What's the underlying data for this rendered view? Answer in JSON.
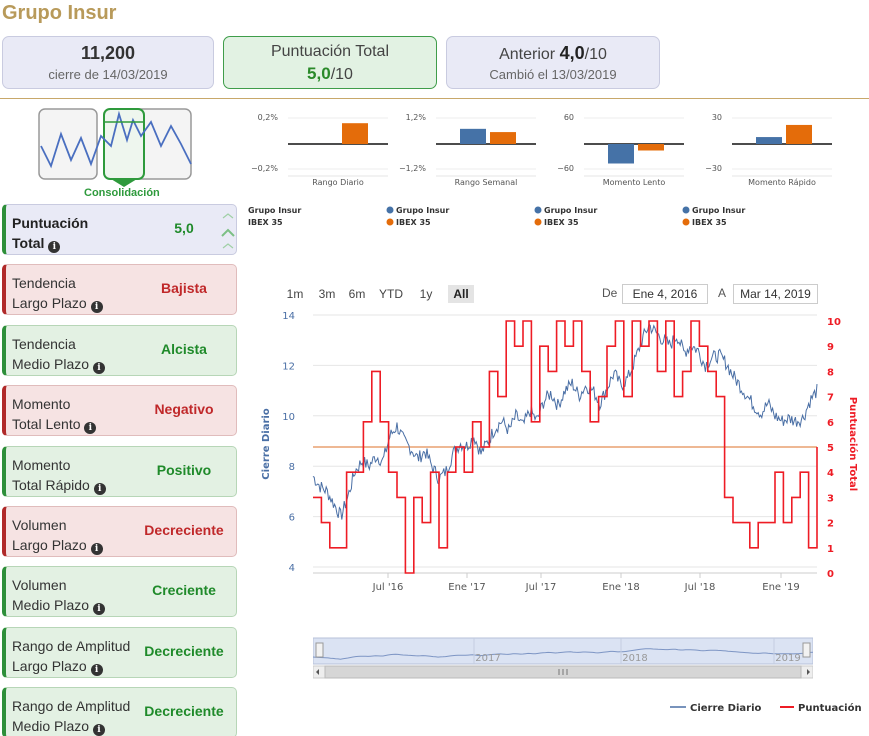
{
  "header": {
    "title": "Grupo Insur"
  },
  "cards": {
    "price": {
      "value": "11,200",
      "sub": "cierre de 14/03/2019"
    },
    "score": {
      "label": "Puntuación Total",
      "value": "5,0",
      "suffix": "/10"
    },
    "prev": {
      "label": "Anterior",
      "value": "4,0",
      "suffix": "/10",
      "sub": "Cambió el 13/03/2019"
    }
  },
  "consolidation": {
    "label": "Consolidación"
  },
  "panels": [
    {
      "label1": "Puntuación",
      "label2": "Total",
      "value": "5,0",
      "status": "blue"
    },
    {
      "label1": "Tendencia",
      "label2": "Largo Plazo",
      "value": "Bajista",
      "status": "red"
    },
    {
      "label1": "Tendencia",
      "label2": "Medio Plazo",
      "value": "Alcista",
      "status": "green"
    },
    {
      "label1": "Momento",
      "label2": "Total Lento",
      "value": "Negativo",
      "status": "red"
    },
    {
      "label1": "Momento",
      "label2": "Total Rápido",
      "value": "Positivo",
      "status": "green"
    },
    {
      "label1": "Volumen",
      "label2": "Largo Plazo",
      "value": "Decreciente",
      "status": "red"
    },
    {
      "label1": "Volumen",
      "label2": "Medio Plazo",
      "value": "Creciente",
      "status": "green"
    },
    {
      "label1": "Rango de Amplitud",
      "label2": "Largo Plazo",
      "value": "Decreciente",
      "status": "green"
    },
    {
      "label1": "Rango de Amplitud",
      "label2": "Medio Plazo",
      "value": "Decreciente",
      "status": "green"
    }
  ],
  "mini_charts": [
    {
      "title": "Rango Diario",
      "top": "0,2%",
      "bottom": "−0,2%",
      "values": [
        0,
        0.16
      ],
      "vmax": 0.2
    },
    {
      "title": "Rango Semanal",
      "top": "1,2%",
      "bottom": "−1,2%",
      "values": [
        0.7,
        0.55
      ],
      "vmax": 1.2
    },
    {
      "title": "Momento Lento",
      "top": "60",
      "bottom": "−60",
      "values": [
        -45,
        -15
      ],
      "vmax": 60
    },
    {
      "title": "Momento Rápido",
      "top": "30",
      "bottom": "−30",
      "values": [
        8,
        22
      ],
      "vmax": 30
    }
  ],
  "mini_legend": {
    "series1": "Grupo Insur",
    "series2": "IBEX 35"
  },
  "colors": {
    "grupo": "#4572a7",
    "ibex": "#e46c0a",
    "close": "#4a6fa5",
    "score": "#ee1c25"
  },
  "range_buttons": [
    "1m",
    "3m",
    "6m",
    "YTD",
    "1y",
    "All"
  ],
  "active_range": "All",
  "date_range": {
    "from_label": "De",
    "from": "Ene 4, 2016",
    "to_label": "A",
    "to": "Mar 14, 2019"
  },
  "chart_data": {
    "type": "line",
    "y_left_label": "Cierre Diario",
    "y_right_label": "Puntuación Total",
    "y_left_ticks": [
      "4",
      "6",
      "8",
      "10",
      "12",
      "14"
    ],
    "y_right_ticks": [
      "0",
      "1",
      "2",
      "3",
      "4",
      "5",
      "6",
      "7",
      "8",
      "9",
      "10"
    ],
    "x_ticks": [
      "Jul '16",
      "Ene '17",
      "Jul '17",
      "Ene '18",
      "Jul '18",
      "Ene '19"
    ],
    "ylim_left": [
      4,
      14
    ],
    "ylim_right": [
      0,
      10
    ],
    "reference_score": 5,
    "navigator_labels": [
      "2017",
      "2018",
      "2019"
    ],
    "series": [
      {
        "name": "Cierre Diario",
        "values": [
          7.6,
          7.2,
          7.0,
          6.5,
          6.0,
          6.8,
          7.8,
          8.2,
          8.0,
          8.4,
          8.2,
          9.2,
          9.6,
          9.0,
          8.7,
          8.3,
          8.6,
          8.0,
          7.5,
          7.8,
          8.5,
          8.9,
          8.8,
          9.2,
          8.5,
          9.0,
          9.5,
          9.8,
          9.4,
          10.0,
          9.6,
          10.2,
          9.8,
          10.6,
          10.9,
          10.4,
          11.0,
          11.3,
          10.8,
          11.2,
          11.0,
          10.5,
          11.1,
          11.7,
          11.2,
          11.5,
          12.2,
          13.0,
          13.6,
          13.3,
          13.0,
          12.8,
          13.2,
          12.5,
          12.8,
          12.6,
          12.0,
          12.3,
          12.4,
          12.1,
          11.6,
          11.2,
          10.8,
          10.4,
          10.1,
          10.5,
          10.0,
          9.8,
          9.9,
          9.8,
          9.9,
          10.6,
          11.0
        ],
        "dates": "2016-01-04..2019-03-14 (approx. biweekly)"
      },
      {
        "name": "Puntuación Total",
        "values": [
          3,
          2,
          1,
          1,
          4,
          4,
          6,
          8,
          6,
          4,
          3,
          0,
          3,
          2,
          4,
          1,
          4,
          5,
          4,
          6,
          5,
          8,
          7,
          10,
          9,
          10,
          6,
          9,
          8,
          10,
          9,
          10,
          8,
          6,
          7,
          9,
          10,
          7,
          10,
          9,
          10,
          8,
          10,
          7,
          8,
          10,
          9,
          8,
          7,
          3,
          2,
          2,
          1,
          2,
          2,
          4,
          2,
          3,
          4,
          1,
          5
        ]
      }
    ]
  },
  "chart_legend": {
    "close": "Cierre Diario",
    "score": "Puntuación"
  }
}
